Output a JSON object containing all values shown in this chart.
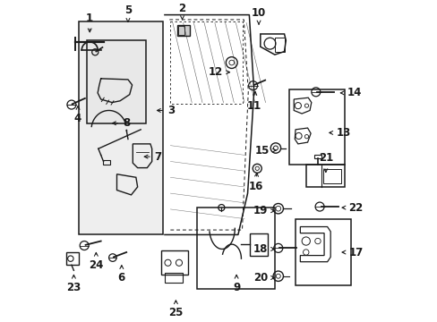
{
  "bg_color": "#ffffff",
  "line_color": "#1a1a1a",
  "fs": 8.5,
  "parts_labels": {
    "1": [
      0.095,
      0.895,
      0.0,
      0.055
    ],
    "2": [
      0.385,
      0.935,
      0.0,
      0.045
    ],
    "3": [
      0.295,
      0.66,
      0.055,
      0.0
    ],
    "4": [
      0.058,
      0.685,
      0.0,
      -0.05
    ],
    "5": [
      0.215,
      0.935,
      0.0,
      0.04
    ],
    "6": [
      0.195,
      0.185,
      0.0,
      -0.05
    ],
    "7": [
      0.255,
      0.515,
      0.055,
      0.0
    ],
    "8": [
      0.155,
      0.62,
      0.055,
      0.0
    ],
    "9": [
      0.555,
      0.155,
      0.0,
      -0.05
    ],
    "10": [
      0.625,
      0.92,
      0.0,
      0.045
    ],
    "11": [
      0.615,
      0.73,
      -0.005,
      -0.055
    ],
    "12": [
      0.545,
      0.78,
      -0.055,
      0.0
    ],
    "13": [
      0.835,
      0.59,
      0.055,
      0.0
    ],
    "14": [
      0.87,
      0.715,
      0.055,
      0.0
    ],
    "15": [
      0.69,
      0.535,
      -0.055,
      0.0
    ],
    "16": [
      0.62,
      0.475,
      -0.005,
      -0.055
    ],
    "17": [
      0.875,
      0.215,
      0.055,
      0.0
    ],
    "18": [
      0.685,
      0.225,
      -0.055,
      0.0
    ],
    "19": [
      0.685,
      0.345,
      -0.055,
      0.0
    ],
    "20": [
      0.685,
      0.135,
      -0.055,
      0.0
    ],
    "21": [
      0.835,
      0.455,
      0.0,
      0.055
    ],
    "22": [
      0.875,
      0.355,
      0.055,
      0.0
    ],
    "23": [
      0.045,
      0.155,
      0.0,
      -0.05
    ],
    "24": [
      0.115,
      0.225,
      0.0,
      -0.05
    ],
    "25": [
      0.365,
      0.075,
      0.0,
      -0.05
    ]
  }
}
